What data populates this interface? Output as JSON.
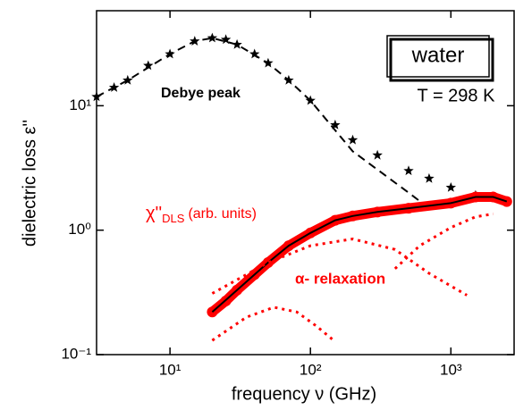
{
  "chart_data": {
    "type": "line",
    "log_x": true,
    "log_y": true,
    "x_label": "frequency ν (GHz)",
    "y_label": "dielectric loss ε''",
    "xlim": [
      3,
      2820
    ],
    "ylim": [
      0.1,
      58
    ],
    "xticks": [
      {
        "value": 10,
        "label": "10¹"
      },
      {
        "value": 100,
        "label": "10²"
      },
      {
        "value": 1000,
        "label": "10³"
      }
    ],
    "yticks": [
      {
        "value": 0.1,
        "label": "10⁻¹"
      },
      {
        "value": 1,
        "label": "10⁰"
      },
      {
        "value": 10,
        "label": "10¹"
      }
    ],
    "series": [
      {
        "marker": "star",
        "color": "#000000",
        "x": [
          3,
          4,
          5,
          7,
          10,
          15,
          20,
          25,
          30,
          40,
          50,
          70,
          100,
          150,
          200,
          300,
          500,
          700,
          1000,
          1500
        ],
        "values": [
          11.8,
          14,
          16,
          21,
          26,
          33,
          35,
          34,
          31,
          26,
          22,
          16,
          11,
          7,
          5.3,
          4,
          3,
          2.6,
          2.2,
          1.9
        ]
      },
      {
        "marker": "dash",
        "color": "#000000",
        "x": [
          3,
          5,
          10,
          15,
          20,
          30,
          50,
          70,
          100,
          200,
          500,
          700
        ],
        "values": [
          11.8,
          16,
          26,
          33,
          35,
          31,
          22,
          16,
          11,
          4.3,
          2.0,
          1.5
        ]
      },
      {
        "marker": "circle",
        "color": "#ff0000",
        "x": [
          20,
          25,
          30,
          40,
          50,
          70,
          100,
          150,
          200,
          300,
          500,
          1000,
          1500,
          2000,
          2500
        ],
        "values": [
          0.22,
          0.27,
          0.33,
          0.44,
          0.55,
          0.75,
          0.95,
          1.2,
          1.3,
          1.4,
          1.5,
          1.65,
          1.85,
          1.85,
          1.7
        ]
      },
      {
        "marker": "solid",
        "color": "#000000",
        "x": [
          20,
          30,
          50,
          70,
          100,
          150,
          200,
          300,
          500,
          1000,
          1500,
          2000,
          2500
        ],
        "values": [
          0.22,
          0.33,
          0.55,
          0.75,
          0.95,
          1.2,
          1.3,
          1.4,
          1.5,
          1.65,
          1.85,
          1.85,
          1.7
        ]
      },
      {
        "marker": "dot",
        "color": "#ff0000",
        "x": [
          20,
          50,
          100,
          200,
          400,
          700,
          1300
        ],
        "values": [
          0.31,
          0.55,
          0.75,
          0.85,
          0.7,
          0.45,
          0.3
        ]
      },
      {
        "marker": "dot",
        "color": "#ff0000",
        "x": [
          20,
          35,
          55,
          80,
          110,
          150
        ],
        "values": [
          0.13,
          0.2,
          0.24,
          0.22,
          0.17,
          0.127
        ]
      },
      {
        "marker": "dot",
        "color": "#ff0000",
        "x": [
          400,
          600,
          1000,
          1500,
          2000
        ],
        "values": [
          0.49,
          0.75,
          1.05,
          1.28,
          1.35
        ]
      }
    ],
    "annotations": {
      "debye": "Debye peak",
      "water": "water",
      "temp": "T = 298 K",
      "chi": "χ''",
      "chi_sub": "DLS",
      "chi_units": "(arb. units)",
      "alpha": "α- relaxation"
    }
  }
}
